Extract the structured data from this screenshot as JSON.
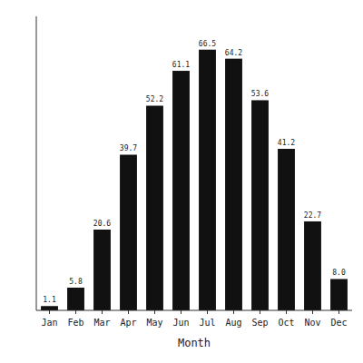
{
  "chart_data": {
    "type": "bar",
    "categories": [
      "Jan",
      "Feb",
      "Mar",
      "Apr",
      "May",
      "Jun",
      "Jul",
      "Aug",
      "Sep",
      "Oct",
      "Nov",
      "Dec"
    ],
    "values": [
      1.1,
      5.8,
      20.6,
      39.7,
      52.2,
      61.1,
      66.5,
      64.2,
      53.6,
      41.2,
      22.7,
      8.0
    ],
    "value_labels": [
      "1.1",
      "5.8",
      "20.6",
      "39.7",
      "52.2",
      "61.1",
      "66.5",
      "64.2",
      "53.6",
      "41.2",
      "22.7",
      "8.0"
    ],
    "color": "#111111",
    "xlabel": "Month",
    "ylim": [
      0,
      75
    ],
    "grid": false,
    "data_labels": true,
    "tick_labels": "x"
  }
}
